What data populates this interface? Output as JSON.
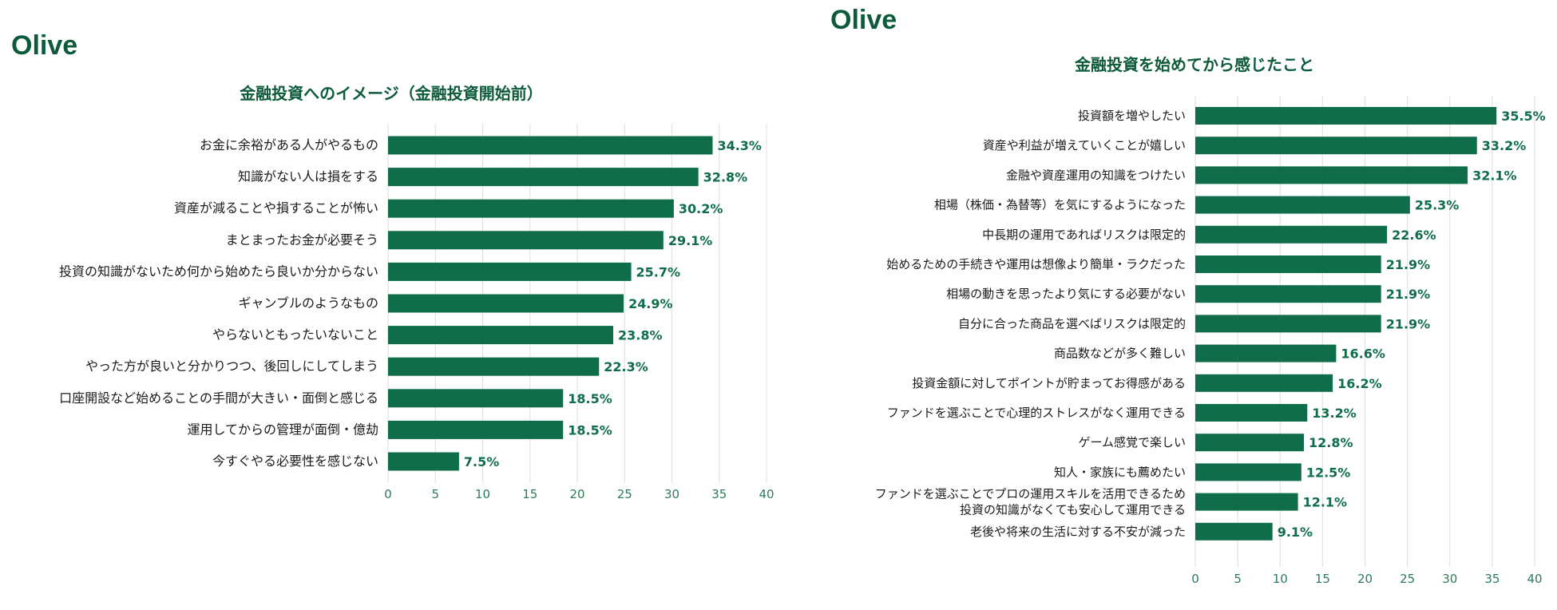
{
  "brand": {
    "name": "Olive",
    "color": "#0d5b3b"
  },
  "colors": {
    "bar": "#0f6e49",
    "label": "#0f6e49",
    "title": "#0d5b3b",
    "grid": "#e3e3e3",
    "tick": "#2f7a59",
    "category": "#1a1a1a"
  },
  "chart_data": [
    {
      "type": "bar",
      "orientation": "horizontal",
      "title": "金融投資へのイメージ（金融投資開始前）",
      "categories": [
        "お金に余裕がある人がやるもの",
        "知識がない人は損をする",
        "資産が減ることや損することが怖い",
        "まとまったお金が必要そう",
        "投資の知識がないため何から始めたら良いか分からない",
        "ギャンブルのようなもの",
        "やらないともったいないこと",
        "やった方が良いと分かりつつ、後回しにしてしまう",
        "口座開設など始めることの手間が大きい・面倒と感じる",
        "運用してからの管理が面倒・億劫",
        "今すぐやる必要性を感じない"
      ],
      "values": [
        34.3,
        32.8,
        30.2,
        29.1,
        25.7,
        24.9,
        23.8,
        22.3,
        18.5,
        18.5,
        7.5
      ],
      "value_labels": [
        "34.3%",
        "32.8%",
        "30.2%",
        "29.1%",
        "25.7%",
        "24.9%",
        "23.8%",
        "22.3%",
        "18.5%",
        "18.5%",
        "7.5%"
      ],
      "xlim": [
        0,
        40
      ],
      "xticks": [
        0,
        5,
        10,
        15,
        20,
        25,
        30,
        35,
        40
      ],
      "xtick_labels": [
        "0",
        "5",
        "10",
        "15",
        "20",
        "25",
        "30",
        "35",
        "40"
      ],
      "grid": true
    },
    {
      "type": "bar",
      "orientation": "horizontal",
      "title": "金融投資を始めてから感じたこと",
      "categories": [
        "投資額を増やしたい",
        "資産や利益が増えていくことが嬉しい",
        "金融や資産運用の知識をつけたい",
        "相場（株価・為替等）を気にするようになった",
        "中長期の運用であればリスクは限定的",
        "始めるための手続きや運用は想像より簡単・ラクだった",
        "相場の動きを思ったより気にする必要がない",
        "自分に合った商品を選べばリスクは限定的",
        "商品数などが多く難しい",
        "投資金額に対してポイントが貯まってお得感がある",
        "ファンドを選ぶことで心理的ストレスがなく運用できる",
        "ゲーム感覚で楽しい",
        "知人・家族にも薦めたい",
        "ファンドを選ぶことでプロの運用スキルを活用できるため\n投資の知識がなくても安心して運用できる",
        "老後や将来の生活に対する不安が減った"
      ],
      "values": [
        35.5,
        33.2,
        32.1,
        25.3,
        22.6,
        21.9,
        21.9,
        21.9,
        16.6,
        16.2,
        13.2,
        12.8,
        12.5,
        12.1,
        9.1
      ],
      "value_labels": [
        "35.5%",
        "33.2%",
        "32.1%",
        "25.3%",
        "22.6%",
        "21.9%",
        "21.9%",
        "21.9%",
        "16.6%",
        "16.2%",
        "13.2%",
        "12.8%",
        "12.5%",
        "12.1%",
        "9.1%"
      ],
      "xlim": [
        0,
        40
      ],
      "xticks": [
        0,
        5,
        10,
        15,
        20,
        25,
        30,
        35,
        40
      ],
      "xtick_labels": [
        "0",
        "5",
        "10",
        "15",
        "20",
        "25",
        "30",
        "35",
        "40"
      ],
      "grid": true
    }
  ]
}
